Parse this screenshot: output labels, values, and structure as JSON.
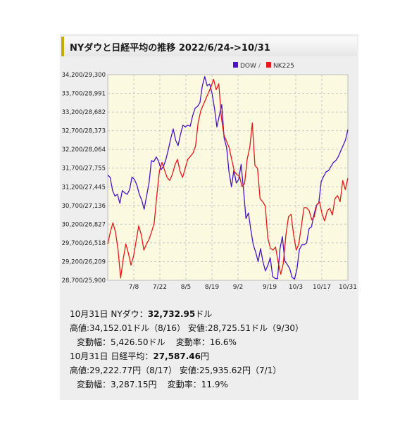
{
  "title": "NYダウと日経平均の推移 2022/6/24->10/31",
  "chart_data": {
    "type": "line",
    "legend": [
      "DOW",
      "NK225"
    ],
    "legend_sep": "/",
    "legend_position": "top-right",
    "grid": true,
    "yticks": [
      "34,200/29,300",
      "33,700/28,991",
      "33,200/28,682",
      "32,700/28,373",
      "32,200/28,064",
      "31,700/27,755",
      "31,200/27,445",
      "30,700/27,136",
      "30,200/26,827",
      "29,700/26,518",
      "29,200/26,209",
      "28,700/25,900"
    ],
    "dow_ylim": [
      28700,
      34200
    ],
    "nk_ylim": [
      25900,
      29300
    ],
    "xticks": [
      "7/8",
      "7/22",
      "8/5",
      "8/19",
      "9/2",
      "9/19",
      "10/3",
      "10/17",
      "10/31"
    ],
    "xtick_days": [
      14,
      28,
      42,
      56,
      70,
      87,
      101,
      115,
      129
    ],
    "x_range_days": [
      0,
      129
    ],
    "series": [
      {
        "name": "DOW",
        "color": "#4b13c8",
        "points": [
          [
            0,
            31520
          ],
          [
            1,
            31450
          ],
          [
            2,
            31100
          ],
          [
            3,
            30950
          ],
          [
            4,
            31000
          ],
          [
            5,
            30760
          ],
          [
            6,
            31100
          ],
          [
            7,
            31040
          ],
          [
            8,
            31000
          ],
          [
            9,
            31120
          ],
          [
            10,
            31460
          ],
          [
            11,
            31400
          ],
          [
            12,
            31250
          ],
          [
            13,
            31000
          ],
          [
            14,
            30850
          ],
          [
            15,
            30600
          ],
          [
            16,
            30950
          ],
          [
            17,
            31300
          ],
          [
            18,
            31900
          ],
          [
            19,
            31870
          ],
          [
            20,
            32000
          ],
          [
            21,
            31880
          ],
          [
            22,
            31660
          ],
          [
            23,
            31750
          ],
          [
            24,
            31940
          ],
          [
            25,
            32200
          ],
          [
            26,
            32500
          ],
          [
            27,
            32750
          ],
          [
            28,
            32450
          ],
          [
            29,
            32300
          ],
          [
            30,
            32600
          ],
          [
            31,
            32850
          ],
          [
            32,
            32800
          ],
          [
            33,
            32850
          ],
          [
            34,
            32820
          ],
          [
            35,
            33100
          ],
          [
            36,
            33300
          ],
          [
            37,
            33350
          ],
          [
            38,
            33450
          ],
          [
            39,
            33900
          ],
          [
            40,
            34150
          ],
          [
            41,
            33900
          ],
          [
            42,
            33950
          ],
          [
            43,
            33700
          ],
          [
            44,
            33300
          ],
          [
            45,
            32800
          ],
          [
            46,
            33100
          ],
          [
            47,
            33400
          ],
          [
            48,
            32500
          ],
          [
            49,
            32250
          ],
          [
            50,
            31600
          ],
          [
            51,
            31200
          ],
          [
            52,
            31650
          ],
          [
            53,
            31300
          ],
          [
            54,
            31400
          ],
          [
            55,
            31800
          ],
          [
            56,
            31100
          ],
          [
            57,
            30350
          ],
          [
            58,
            30500
          ],
          [
            59,
            30050
          ],
          [
            60,
            29650
          ],
          [
            61,
            29450
          ],
          [
            62,
            29200
          ],
          [
            63,
            29550
          ],
          [
            64,
            29200
          ],
          [
            65,
            28950
          ],
          [
            66,
            29100
          ],
          [
            67,
            29300
          ],
          [
            68,
            28800
          ],
          [
            69,
            28750
          ],
          [
            70,
            28740
          ],
          [
            71,
            29540
          ],
          [
            72,
            29870
          ],
          [
            73,
            29220
          ],
          [
            74,
            29120
          ],
          [
            75,
            29020
          ],
          [
            76,
            28780
          ],
          [
            77,
            28730
          ],
          [
            78,
            29000
          ],
          [
            79,
            29520
          ],
          [
            80,
            29650
          ],
          [
            81,
            29650
          ],
          [
            82,
            29700
          ],
          [
            83,
            30080
          ],
          [
            84,
            30130
          ],
          [
            85,
            30450
          ],
          [
            86,
            30700
          ],
          [
            87,
            30770
          ],
          [
            88,
            31340
          ],
          [
            89,
            31480
          ],
          [
            90,
            31600
          ],
          [
            91,
            31630
          ],
          [
            92,
            31740
          ],
          [
            93,
            31850
          ],
          [
            94,
            31900
          ],
          [
            95,
            32000
          ],
          [
            96,
            32150
          ],
          [
            97,
            32300
          ],
          [
            98,
            32450
          ],
          [
            99,
            32733
          ]
        ]
      },
      {
        "name": "NK225",
        "color": "#e8171a",
        "points": [
          [
            0,
            26500
          ],
          [
            1,
            26700
          ],
          [
            2,
            26850
          ],
          [
            3,
            26700
          ],
          [
            4,
            26400
          ],
          [
            5,
            25936
          ],
          [
            6,
            26250
          ],
          [
            7,
            26500
          ],
          [
            8,
            26350
          ],
          [
            9,
            26150
          ],
          [
            10,
            26300
          ],
          [
            11,
            26550
          ],
          [
            12,
            26800
          ],
          [
            13,
            26650
          ],
          [
            14,
            26400
          ],
          [
            15,
            26500
          ],
          [
            16,
            26580
          ],
          [
            17,
            26700
          ],
          [
            18,
            26850
          ],
          [
            19,
            27300
          ],
          [
            20,
            27700
          ],
          [
            21,
            27850
          ],
          [
            22,
            27720
          ],
          [
            23,
            27600
          ],
          [
            24,
            27550
          ],
          [
            25,
            27650
          ],
          [
            26,
            27800
          ],
          [
            27,
            27900
          ],
          [
            28,
            27700
          ],
          [
            29,
            27600
          ],
          [
            30,
            27750
          ],
          [
            31,
            27900
          ],
          [
            32,
            27950
          ],
          [
            33,
            28000
          ],
          [
            34,
            28120
          ],
          [
            35,
            28500
          ],
          [
            36,
            28700
          ],
          [
            37,
            28800
          ],
          [
            38,
            28900
          ],
          [
            39,
            29000
          ],
          [
            40,
            29100
          ],
          [
            41,
            29223
          ],
          [
            42,
            29050
          ],
          [
            43,
            29150
          ],
          [
            44,
            28600
          ],
          [
            45,
            28300
          ],
          [
            46,
            28200
          ],
          [
            47,
            28100
          ],
          [
            48,
            27900
          ],
          [
            49,
            27700
          ],
          [
            50,
            27650
          ],
          [
            51,
            27620
          ],
          [
            52,
            27450
          ],
          [
            53,
            27500
          ],
          [
            54,
            27900
          ],
          [
            55,
            28100
          ],
          [
            56,
            28500
          ],
          [
            57,
            27800
          ],
          [
            58,
            27750
          ],
          [
            59,
            27250
          ],
          [
            60,
            27200
          ],
          [
            61,
            27130
          ],
          [
            62,
            26600
          ],
          [
            63,
            26430
          ],
          [
            64,
            26400
          ],
          [
            65,
            26450
          ],
          [
            66,
            26200
          ],
          [
            67,
            26000
          ],
          [
            68,
            26180
          ],
          [
            69,
            26650
          ],
          [
            70,
            26950
          ],
          [
            71,
            26990
          ],
          [
            72,
            26650
          ],
          [
            73,
            26400
          ],
          [
            74,
            26500
          ],
          [
            75,
            26800
          ],
          [
            76,
            27100
          ],
          [
            77,
            27100
          ],
          [
            78,
            27050
          ],
          [
            79,
            26900
          ],
          [
            80,
            26950
          ],
          [
            81,
            27150
          ],
          [
            82,
            27200
          ],
          [
            83,
            27000
          ],
          [
            84,
            26880
          ],
          [
            85,
            27050
          ],
          [
            86,
            27090
          ],
          [
            87,
            26980
          ],
          [
            88,
            27250
          ],
          [
            89,
            27300
          ],
          [
            90,
            27200
          ],
          [
            91,
            27550
          ],
          [
            92,
            27400
          ],
          [
            93,
            27590
          ]
        ]
      }
    ]
  },
  "info": {
    "dow": {
      "date": "10月31日",
      "label": "NYダウ：",
      "close": "32,732.95",
      "unit": "ドル",
      "high_label": "高値:",
      "high": "34,152.01ドル（8/16）",
      "low_label": "安値:",
      "low": "28,725.51ドル（9/30）",
      "range_label": "変動幅：",
      "range": "5,426.50ドル",
      "rate_label": "変動率：",
      "rate": "16.6%"
    },
    "nk": {
      "date": "10月31日",
      "label": "日経平均：",
      "close": "27,587.46",
      "unit": "円",
      "high_label": "高値:",
      "high": "29,222.77円（8/17）",
      "low_label": "安値:",
      "low": "25,935.62円（7/1）",
      "range_label": "変動幅：",
      "range": "3,287.15円",
      "rate_label": "変動率：",
      "rate": "11.9%"
    }
  }
}
